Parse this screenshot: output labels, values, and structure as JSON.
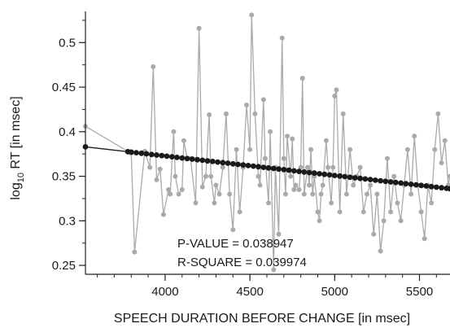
{
  "chart_data": {
    "type": "scatter",
    "xlabel": "SPEECH DURATION BEFORE CHANGE [in msec]",
    "ylabel_main": "log",
    "ylabel_sub": "10",
    "ylabel_rest": " RT [in msec]",
    "xlim": [
      3530,
      5680
    ],
    "ylim": [
      0.24,
      0.535
    ],
    "x_ticks": [
      4000,
      4500,
      5000,
      5500
    ],
    "y_ticks": [
      0.25,
      0.3,
      0.35,
      0.4,
      0.45,
      0.5
    ],
    "x_minor_step": 100,
    "y_minor_step": 0.025,
    "annotations": {
      "p_value": "P-VALUE = 0.038947",
      "r_square": "R-SQUARE = 0.039974"
    },
    "colors": {
      "observed": "#aaaaaa",
      "fit": "#1a1a1a"
    },
    "fit": {
      "start": [
        3530,
        0.383
      ],
      "end": [
        5680,
        0.336
      ]
    },
    "fit_points_x": [
      3530,
      3780,
      3800,
      3830,
      3860,
      3890,
      3920,
      3950,
      3980,
      4010,
      4040,
      4070,
      4100,
      4130,
      4160,
      4190,
      4220,
      4250,
      4280,
      4310,
      4340,
      4370,
      4400,
      4430,
      4460,
      4490,
      4520,
      4550,
      4580,
      4610,
      4640,
      4670,
      4700,
      4730,
      4760,
      4790,
      4820,
      4850,
      4880,
      4910,
      4940,
      4970,
      5000,
      5030,
      5060,
      5090,
      5120,
      5150,
      5180,
      5210,
      5240,
      5270,
      5300,
      5330,
      5360,
      5390,
      5420,
      5450,
      5480,
      5510,
      5540,
      5570,
      5600,
      5630,
      5660,
      5680
    ],
    "observed": {
      "x": [
        3530,
        3780,
        3800,
        3820,
        3880,
        3910,
        3930,
        3950,
        3970,
        3990,
        4020,
        4030,
        4050,
        4060,
        4080,
        4100,
        4110,
        4130,
        4150,
        4180,
        4200,
        4220,
        4240,
        4260,
        4270,
        4290,
        4300,
        4320,
        4340,
        4360,
        4380,
        4400,
        4420,
        4440,
        4460,
        4480,
        4500,
        4510,
        4530,
        4550,
        4560,
        4580,
        4590,
        4610,
        4620,
        4640,
        4650,
        4670,
        4690,
        4700,
        4710,
        4720,
        4740,
        4750,
        4760,
        4770,
        4790,
        4800,
        4810,
        4820,
        4840,
        4850,
        4860,
        4870,
        4880,
        4900,
        4910,
        4920,
        4930,
        4950,
        4960,
        4980,
        4990,
        5000,
        5010,
        5030,
        5050,
        5070,
        5090,
        5110,
        5130,
        5150,
        5170,
        5190,
        5210,
        5230,
        5250,
        5270,
        5290,
        5310,
        5330,
        5350,
        5370,
        5390,
        5410,
        5430,
        5450,
        5470,
        5490,
        5510,
        5530,
        5550,
        5570,
        5590,
        5610,
        5630,
        5650,
        5670,
        5680
      ],
      "y": [
        0.406,
        0.378,
        0.376,
        0.265,
        0.378,
        0.36,
        0.473,
        0.346,
        0.358,
        0.307,
        0.335,
        0.33,
        0.4,
        0.35,
        0.33,
        0.335,
        0.39,
        0.37,
        0.37,
        0.32,
        0.516,
        0.338,
        0.35,
        0.419,
        0.35,
        0.32,
        0.34,
        0.33,
        0.36,
        0.42,
        0.33,
        0.29,
        0.38,
        0.31,
        0.36,
        0.43,
        0.38,
        0.531,
        0.42,
        0.35,
        0.34,
        0.436,
        0.37,
        0.32,
        0.4,
        0.245,
        0.36,
        0.285,
        0.505,
        0.37,
        0.33,
        0.395,
        0.35,
        0.392,
        0.335,
        0.34,
        0.335,
        0.36,
        0.46,
        0.33,
        0.36,
        0.34,
        0.38,
        0.33,
        0.35,
        0.31,
        0.3,
        0.33,
        0.34,
        0.39,
        0.36,
        0.32,
        0.36,
        0.44,
        0.447,
        0.31,
        0.42,
        0.33,
        0.38,
        0.34,
        0.35,
        0.36,
        0.31,
        0.33,
        0.34,
        0.285,
        0.33,
        0.266,
        0.3,
        0.37,
        0.31,
        0.35,
        0.32,
        0.3,
        0.34,
        0.38,
        0.33,
        0.395,
        0.34,
        0.31,
        0.28,
        0.34,
        0.32,
        0.38,
        0.42,
        0.365,
        0.39,
        0.34,
        0.35
      ]
    }
  }
}
